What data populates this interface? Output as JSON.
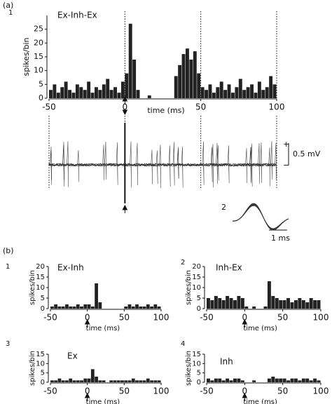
{
  "figure": {
    "panel_a": "(a)",
    "panel_b": "(b)",
    "trace_plus": "+",
    "trace_minus": "−",
    "trace_scale": "0.5 mV",
    "inset_label": "2",
    "inset_scale": "1 ms"
  },
  "chart_data": [
    {
      "type": "histogram",
      "panel": "1",
      "title": "Ex-Inh-Ex",
      "xlabel": "time (ms)",
      "ylabel": "spikes/bin",
      "color": "#222222",
      "bins": [
        -50,
        -47.5,
        -45,
        -42.5,
        -40,
        -37.5,
        -35,
        -32.5,
        -30,
        -27.5,
        -25,
        -22.5,
        -20,
        -17.5,
        -15,
        -12.5,
        -10,
        -7.5,
        -5,
        -2.5,
        0,
        2.5,
        5,
        7.5,
        10,
        12.5,
        15,
        17.5,
        20,
        22.5,
        25,
        27.5,
        30,
        32.5,
        35,
        37.5,
        40,
        42.5,
        45,
        47.5,
        50,
        52.5,
        55,
        57.5,
        60,
        62.5,
        65,
        67.5,
        70,
        72.5,
        75,
        77.5,
        80,
        82.5,
        85,
        87.5,
        90,
        92.5,
        95,
        97.5,
        100
      ],
      "values": [
        3,
        5,
        2,
        4,
        6,
        3,
        2,
        5,
        4,
        3,
        6,
        2,
        4,
        3,
        5,
        7,
        3,
        4,
        2,
        6,
        9,
        27,
        14,
        3,
        0,
        0,
        1,
        0,
        0,
        0,
        0,
        0,
        0,
        8,
        12,
        16,
        18,
        14,
        17,
        9,
        4,
        3,
        5,
        2,
        4,
        6,
        3,
        5,
        2,
        4,
        7,
        3,
        4,
        5,
        2,
        6,
        3,
        4,
        8,
        5
      ],
      "xlim": [
        -50,
        100
      ],
      "xticks": [
        -50,
        0,
        50,
        100
      ],
      "ylim": [
        0,
        30
      ],
      "yticks": [
        0,
        5,
        10,
        15,
        20,
        25
      ],
      "vlines": [
        0,
        50,
        100
      ]
    },
    {
      "type": "histogram",
      "panel": "1",
      "title": "Ex-Inh",
      "xlabel": "time (ms)",
      "ylabel": "spikes/bin",
      "color": "#222222",
      "bins": [
        -50,
        -45,
        -40,
        -35,
        -30,
        -25,
        -20,
        -15,
        -10,
        -5,
        0,
        5,
        10,
        15,
        20,
        25,
        30,
        35,
        40,
        45,
        50,
        55,
        60,
        65,
        70,
        75,
        80,
        85,
        90,
        95,
        100
      ],
      "values": [
        1,
        2,
        1,
        1,
        2,
        1,
        1,
        2,
        1,
        2,
        2,
        1,
        12,
        3,
        0,
        0,
        0,
        0,
        0,
        0,
        1,
        2,
        1,
        2,
        1,
        1,
        2,
        1,
        2,
        1
      ],
      "xlim": [
        -50,
        100
      ],
      "xticks": [
        -50,
        0,
        50,
        100
      ],
      "ylim": [
        0,
        20
      ],
      "yticks": [
        0,
        5,
        10,
        15,
        20
      ]
    },
    {
      "type": "histogram",
      "panel": "2",
      "title": "Inh-Ex",
      "xlabel": "time (ms)",
      "ylabel": "spikes/bin",
      "color": "#222222",
      "bins": [
        -50,
        -45,
        -40,
        -35,
        -30,
        -25,
        -20,
        -15,
        -10,
        -5,
        0,
        5,
        10,
        15,
        20,
        25,
        30,
        35,
        40,
        45,
        50,
        55,
        60,
        65,
        70,
        75,
        80,
        85,
        90,
        95,
        100
      ],
      "values": [
        5,
        4,
        6,
        5,
        4,
        6,
        5,
        4,
        6,
        5,
        1,
        0,
        1,
        0,
        0,
        1,
        13,
        6,
        5,
        4,
        4,
        5,
        3,
        4,
        5,
        4,
        3,
        5,
        4,
        4
      ],
      "xlim": [
        -50,
        100
      ],
      "xticks": [
        -50,
        0,
        50,
        100
      ],
      "ylim": [
        0,
        20
      ],
      "yticks": [
        0,
        5,
        10,
        15,
        20
      ]
    },
    {
      "type": "histogram",
      "panel": "3",
      "title": "Ex",
      "xlabel": "time (ms)",
      "ylabel": "spikes/bin",
      "color": "#222222",
      "bins": [
        -50,
        -45,
        -40,
        -35,
        -30,
        -25,
        -20,
        -15,
        -10,
        -5,
        0,
        5,
        10,
        15,
        20,
        25,
        30,
        35,
        40,
        45,
        50,
        55,
        60,
        65,
        70,
        75,
        80,
        85,
        90,
        95,
        100
      ],
      "values": [
        1,
        1,
        2,
        1,
        1,
        2,
        1,
        1,
        1,
        2,
        2,
        7,
        3,
        1,
        1,
        0,
        1,
        1,
        1,
        1,
        1,
        1,
        2,
        1,
        1,
        1,
        2,
        1,
        1,
        1
      ],
      "xlim": [
        -50,
        100
      ],
      "xticks": [
        -50,
        0,
        50,
        100
      ],
      "ylim": [
        0,
        15
      ],
      "yticks": [
        0,
        5,
        10,
        15
      ]
    },
    {
      "type": "histogram",
      "panel": "4",
      "title": "Inh",
      "xlabel": "time (ms)",
      "ylabel": "spikes/bin",
      "color": "#222222",
      "bins": [
        -50,
        -45,
        -40,
        -35,
        -30,
        -25,
        -20,
        -15,
        -10,
        -5,
        0,
        5,
        10,
        15,
        20,
        25,
        30,
        35,
        40,
        45,
        50,
        55,
        60,
        65,
        70,
        75,
        80,
        85,
        90,
        95,
        100
      ],
      "values": [
        2,
        1,
        2,
        2,
        1,
        2,
        1,
        2,
        2,
        1,
        0,
        0,
        1,
        0,
        0,
        0,
        2,
        3,
        2,
        2,
        2,
        1,
        2,
        2,
        1,
        2,
        2,
        1,
        2,
        1
      ],
      "xlim": [
        -50,
        100
      ],
      "xticks": [
        -50,
        0,
        50,
        100
      ],
      "ylim": [
        0,
        15
      ],
      "yticks": [
        0,
        5,
        10,
        15
      ]
    }
  ]
}
